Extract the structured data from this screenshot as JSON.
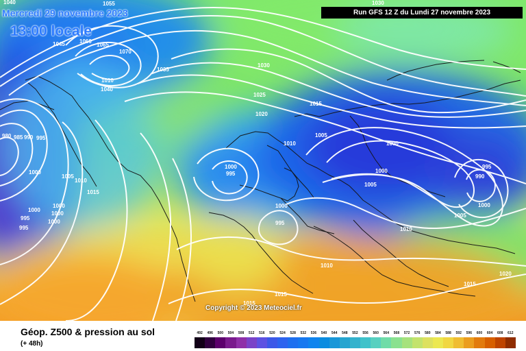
{
  "header": {
    "date_line": "Mercredi 29 novembre 2023",
    "time_line": "13:00 locale",
    "run_banner": "Run GFS 12 Z du Lundi 27 novembre 2023"
  },
  "footer": {
    "title": "Géop. Z500 & pression au sol",
    "subtitle": "(+ 48h)",
    "copyright": "Copyright © 2023 Meteociel.fr"
  },
  "legend": {
    "scale_values": [
      492,
      496,
      500,
      504,
      508,
      512,
      516,
      520,
      524,
      528,
      532,
      536,
      540,
      544,
      548,
      552,
      556,
      560,
      564,
      568,
      572,
      576,
      580,
      584,
      588,
      592,
      596,
      600,
      604,
      608,
      612
    ],
    "colors": [
      "#120017",
      "#31003f",
      "#5c006c",
      "#7a1a8d",
      "#8f2fa8",
      "#7a42c8",
      "#5d51e2",
      "#3c58e8",
      "#2d63ef",
      "#1e6fef",
      "#1778f0",
      "#0f84ee",
      "#0b8ce0",
      "#1997d8",
      "#26a5d0",
      "#34b2cd",
      "#3fc2ca",
      "#58d0c0",
      "#70dca8",
      "#8ae18f",
      "#a6e27c",
      "#c3e36c",
      "#dde15f",
      "#ece850",
      "#f1d741",
      "#f0bd31",
      "#eb9d1e",
      "#e27b0d",
      "#d75f00",
      "#be4400",
      "#8f2d00"
    ]
  },
  "map": {
    "colors": {
      "ocean_blue": "#1f8ef1",
      "cyan": "#59c8f0",
      "green": "#7de36a",
      "yellow": "#efe351",
      "orange": "#f1a126",
      "deep_blue": "#2c3fdb",
      "purple": "#5d35d4",
      "land_line": "#141414"
    },
    "pressure_labels": [
      {
        "text": "1040"
      },
      {
        "text": "1055"
      },
      {
        "text": "1045"
      },
      {
        "text": "1060"
      },
      {
        "text": "1065"
      },
      {
        "text": "1070"
      },
      {
        "text": "1035"
      },
      {
        "text": "1010"
      },
      {
        "text": "1040"
      },
      {
        "text": "1030"
      },
      {
        "text": "1030"
      },
      {
        "text": "1025"
      },
      {
        "text": "1020"
      },
      {
        "text": "1015"
      },
      {
        "text": "1005"
      },
      {
        "text": "1010"
      },
      {
        "text": "1000"
      },
      {
        "text": "1000"
      },
      {
        "text": "1005"
      },
      {
        "text": "995"
      },
      {
        "text": "990"
      },
      {
        "text": "1000"
      },
      {
        "text": "1005"
      },
      {
        "text": "1000"
      },
      {
        "text": "995"
      },
      {
        "text": "1000"
      },
      {
        "text": "995"
      },
      {
        "text": "1010"
      },
      {
        "text": "1010"
      },
      {
        "text": "1015"
      },
      {
        "text": "1020"
      },
      {
        "text": "1015"
      },
      {
        "text": "1015"
      },
      {
        "text": "980"
      },
      {
        "text": "985"
      },
      {
        "text": "990"
      },
      {
        "text": "995"
      },
      {
        "text": "1000"
      },
      {
        "text": "1005"
      },
      {
        "text": "1010"
      },
      {
        "text": "1015"
      },
      {
        "text": "1000"
      },
      {
        "text": "1000"
      },
      {
        "text": "1000"
      },
      {
        "text": "995"
      },
      {
        "text": "1000"
      },
      {
        "text": "995"
      }
    ]
  }
}
